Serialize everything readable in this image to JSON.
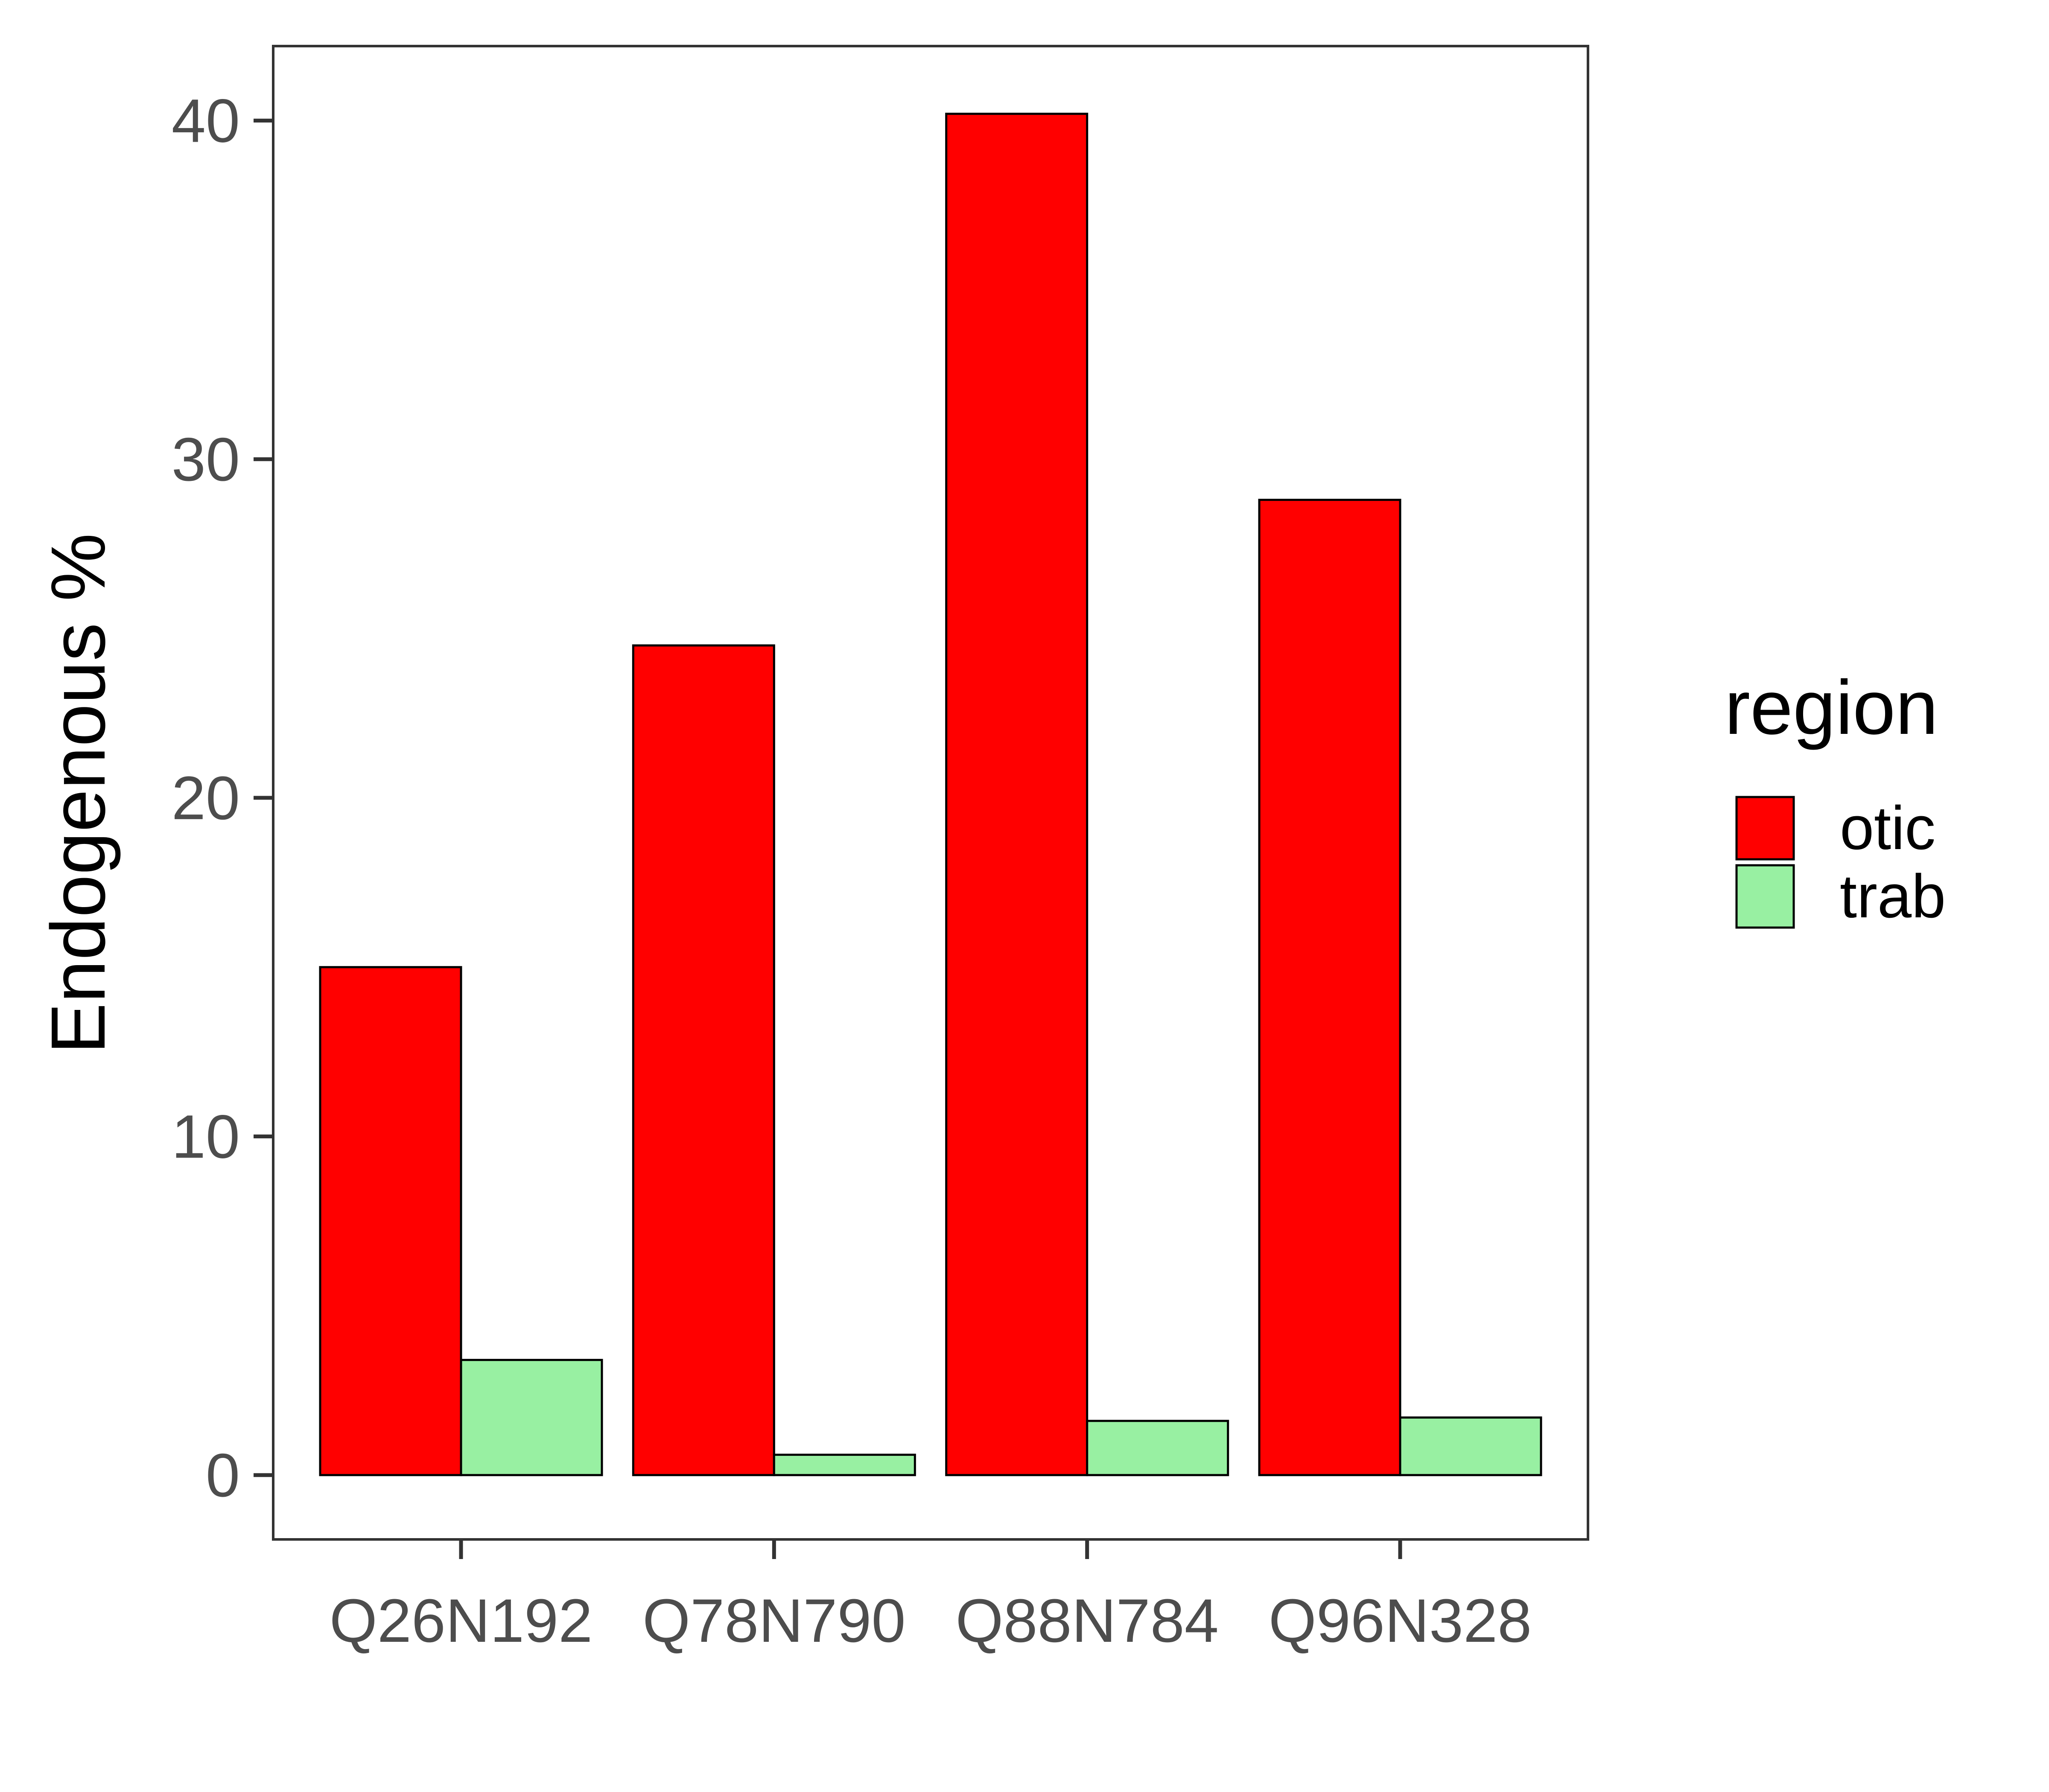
{
  "colors": {
    "otic": "#ff0000",
    "trab": "#98f0a2",
    "bar_stroke": "#000000",
    "panel_border": "#333333",
    "tick_text": "#4d4d4d"
  },
  "chart_data": {
    "type": "bar",
    "categories": [
      "Q26N192",
      "Q78N790",
      "Q88N784",
      "Q96N328"
    ],
    "series": [
      {
        "name": "otic",
        "values": [
          15.0,
          24.5,
          40.2,
          28.8
        ]
      },
      {
        "name": "trab",
        "values": [
          3.4,
          0.6,
          1.6,
          1.7
        ]
      }
    ],
    "title": "",
    "xlabel": "",
    "ylabel": "Endogenous %",
    "ylim": [
      -1.9,
      42.2
    ],
    "yticks": [
      0,
      10,
      20,
      30,
      40
    ],
    "legend": {
      "title": "region",
      "position": "right"
    },
    "grid": false
  }
}
